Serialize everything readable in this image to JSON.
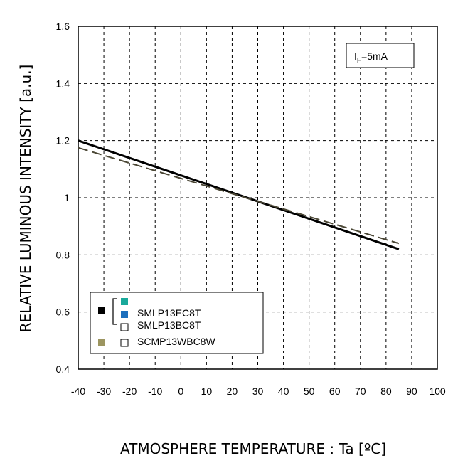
{
  "chart_data": {
    "type": "line",
    "xlabel": "ATMOSPHERE TEMPERATURE : Ta [ºC]",
    "ylabel": "RELATIVE LUMINOUS INTENSITY [a.u.]",
    "xlim": [
      -40,
      100
    ],
    "ylim": [
      0.4,
      1.6
    ],
    "x_ticks": [
      "-40",
      "-30",
      "-20",
      "-10",
      "0",
      "10",
      "20",
      "30",
      "40",
      "50",
      "60",
      "70",
      "80",
      "90",
      "100"
    ],
    "y_ticks": [
      "0.4",
      "0.6",
      "0.8",
      "1",
      "1.2",
      "1.4",
      "1.6"
    ],
    "grid": "dashed",
    "condition_label": {
      "main": "I",
      "sub": "F",
      "rest": "=5mA"
    },
    "series": [
      {
        "name": "SMLP13EC8T / SMLP13BC8T",
        "style": "solid",
        "color": "#000000",
        "x": [
          -40,
          85
        ],
        "y": [
          1.2,
          0.82
        ]
      },
      {
        "name": "SCMP13WBC8W",
        "style": "dashed",
        "color": "#4a4634",
        "x": [
          -40,
          85
        ],
        "y": [
          1.175,
          0.84
        ]
      }
    ],
    "legend": {
      "placement": "bottom-left",
      "entries": [
        {
          "label": "SMLP13EC8T",
          "swatch_color": "#1aa99b"
        },
        {
          "label": "SMLP13BC8T",
          "swatch_color": "#1c6fbd"
        },
        {
          "label": "SCMP13WBC8W",
          "swatch_color": "#ffffff"
        }
      ],
      "group_markers": [
        {
          "color": "#000000"
        },
        {
          "color": "#9c9560"
        }
      ]
    }
  }
}
